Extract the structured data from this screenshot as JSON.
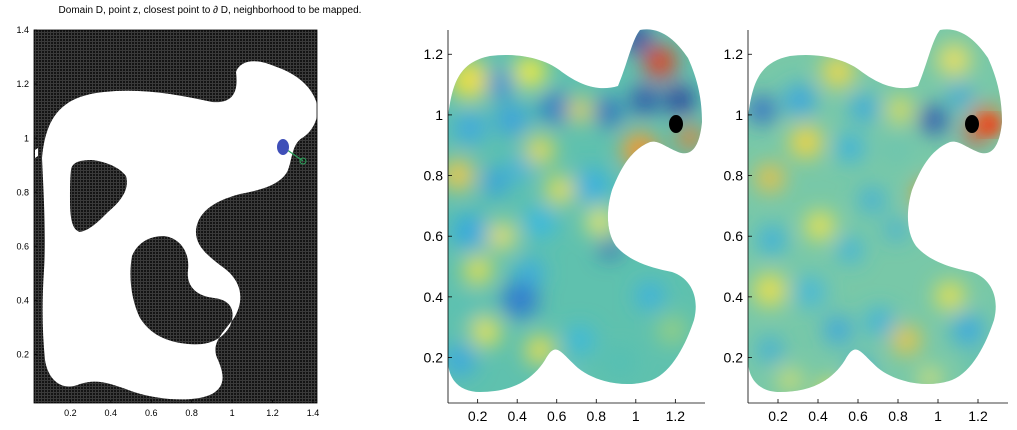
{
  "figure": {
    "panels": [
      {
        "id": "domain",
        "title": "Domain D, point z, closest point to ∂ D, neighborhood to be mapped.",
        "xticks": [
          "0.2",
          "0.4",
          "0.6",
          "0.8",
          "1",
          "1.2",
          "1.4"
        ],
        "yticks": [
          "0.2",
          "0.4",
          "0.6",
          "0.8",
          "1",
          "1.2",
          "1.4"
        ]
      },
      {
        "id": "field-a",
        "title": "",
        "xticks": [
          "0.2",
          "0.4",
          "0.6",
          "0.8",
          "1",
          "1.2"
        ],
        "yticks": [
          "0.2",
          "0.4",
          "0.6",
          "0.8",
          "1",
          "1.2"
        ]
      },
      {
        "id": "field-b",
        "title": "",
        "xticks": [
          "0.2",
          "0.4",
          "0.6",
          "0.8",
          "1",
          "1.2"
        ],
        "yticks": [
          "0.2",
          "0.4",
          "0.6",
          "0.8",
          "1",
          "1.2"
        ]
      }
    ]
  },
  "chart_data": [
    {
      "type": "heatmap",
      "title": "Domain D, point z, closest point to ∂ D, neighborhood to be mapped.",
      "xlim": [
        0.02,
        1.42
      ],
      "ylim": [
        0.02,
        1.4
      ],
      "grid": false,
      "marked_point_z": {
        "x": 1.27,
        "y": 0.98
      },
      "closest_boundary_point": {
        "x": 1.34,
        "y": 0.93
      },
      "colors": {
        "outside": "#262626",
        "domain": "#ffffff",
        "point": "#3f4fb8",
        "segment": "#2ca05a"
      }
    },
    {
      "type": "heatmap",
      "xlim": [
        0.05,
        1.35
      ],
      "ylim": [
        0.05,
        1.28
      ],
      "grid": false,
      "marked_point": {
        "x": 1.27,
        "y": 0.97
      },
      "colormap": "jet"
    },
    {
      "type": "heatmap",
      "xlim": [
        0.05,
        1.35
      ],
      "ylim": [
        0.05,
        1.28
      ],
      "grid": false,
      "marked_point": {
        "x": 1.27,
        "y": 0.97
      },
      "colormap": "jet"
    }
  ]
}
